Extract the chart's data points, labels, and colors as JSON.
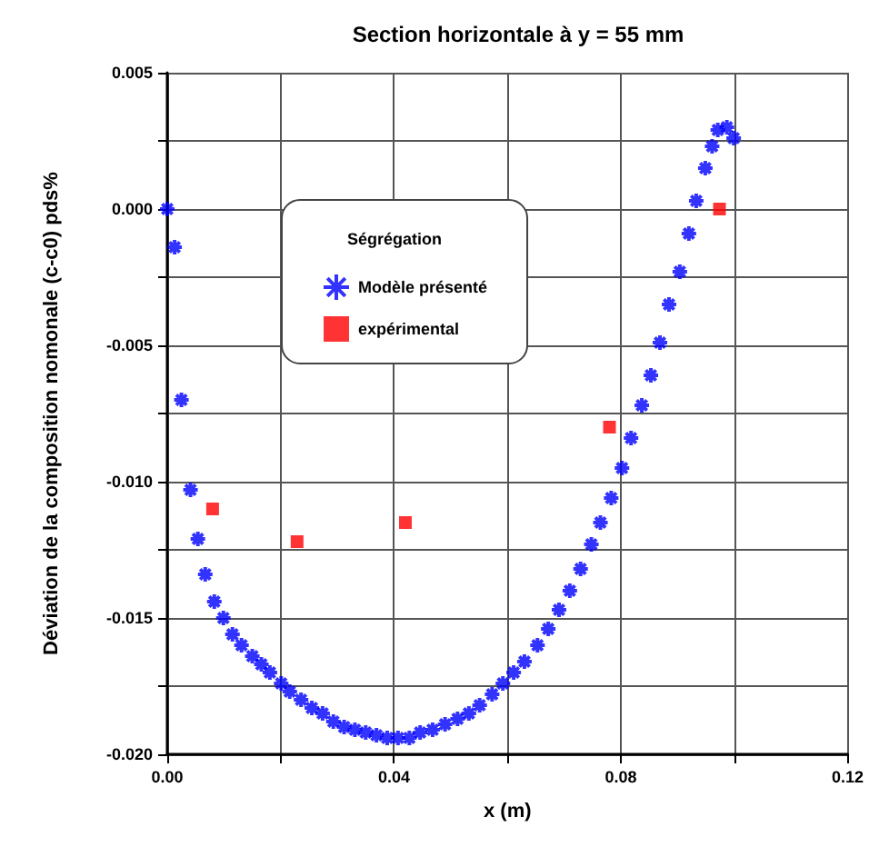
{
  "chart_data": {
    "type": "scatter",
    "title": "Section horizontale à y = 55 mm",
    "xlabel": "x (m)",
    "ylabel": "Déviation de la composition nomonale (c-c0) pds%",
    "legend_title": "Ségrégation",
    "legend": "top",
    "grid": true,
    "xlim": [
      0,
      0.12
    ],
    "xticks": [
      {
        "value": 0,
        "label": "0.00"
      },
      {
        "value": 0.02,
        "label": null
      },
      {
        "value": 0.04,
        "label": "0.04"
      },
      {
        "value": 0.06,
        "label": null
      },
      {
        "value": 0.08,
        "label": "0.08"
      },
      {
        "value": 0.1,
        "label": null
      },
      {
        "value": 0.12,
        "label": "0.12"
      }
    ],
    "ylim": [
      -0.02,
      0.005
    ],
    "yticks": [
      {
        "value": -0.02,
        "label": "-0.020"
      },
      {
        "value": -0.0175,
        "label": null
      },
      {
        "value": -0.015,
        "label": "-0.015"
      },
      {
        "value": -0.0125,
        "label": null
      },
      {
        "value": -0.01,
        "label": "-0.010"
      },
      {
        "value": -0.0075,
        "label": null
      },
      {
        "value": -0.005,
        "label": "-0.005"
      },
      {
        "value": -0.0025,
        "label": null
      },
      {
        "value": 0,
        "label": "0.000"
      },
      {
        "value": 0.0025,
        "label": null
      },
      {
        "value": 0.005,
        "label": "0.005"
      }
    ],
    "series": [
      {
        "name": "Modèle présenté",
        "color": "#0000ff",
        "marker": "cross",
        "x": [
          0,
          0.0013,
          0.0025,
          0.0041,
          0.0054,
          0.0067,
          0.0083,
          0.0099,
          0.0115,
          0.0131,
          0.015,
          0.0166,
          0.0181,
          0.0201,
          0.0216,
          0.0236,
          0.0255,
          0.0274,
          0.0293,
          0.0312,
          0.0331,
          0.035,
          0.0369,
          0.0388,
          0.0407,
          0.0427,
          0.0446,
          0.0468,
          0.049,
          0.0512,
          0.0532,
          0.0551,
          0.0573,
          0.0592,
          0.0611,
          0.063,
          0.0653,
          0.0672,
          0.0691,
          0.071,
          0.0729,
          0.0748,
          0.0764,
          0.0783,
          0.0802,
          0.0818,
          0.0837,
          0.0853,
          0.0869,
          0.0885,
          0.0904,
          0.092,
          0.0933,
          0.0949,
          0.0961,
          0.0971,
          0.0987,
          0.0999
        ],
        "values": [
          0,
          -0.0014,
          -0.007,
          -0.0103,
          -0.0121,
          -0.0134,
          -0.0144,
          -0.015,
          -0.0156,
          -0.016,
          -0.0164,
          -0.0167,
          -0.017,
          -0.0174,
          -0.0177,
          -0.018,
          -0.0183,
          -0.0185,
          -0.0188,
          -0.019,
          -0.0191,
          -0.0192,
          -0.0193,
          -0.0194,
          -0.0194,
          -0.0194,
          -0.0192,
          -0.0191,
          -0.0189,
          -0.0187,
          -0.0185,
          -0.0182,
          -0.0178,
          -0.0174,
          -0.017,
          -0.0166,
          -0.016,
          -0.0154,
          -0.0147,
          -0.014,
          -0.0132,
          -0.0123,
          -0.0115,
          -0.0106,
          -0.0095,
          -0.0084,
          -0.0072,
          -0.0061,
          -0.0049,
          -0.0035,
          -0.0023,
          -0.0009,
          0.0003,
          0.0015,
          0.0023,
          0.0029,
          0.003,
          0.0026
        ]
      },
      {
        "name": "expérimental",
        "color": "#ff0000",
        "marker": "square",
        "x": [
          0.008,
          0.0229,
          0.042,
          0.078,
          0.0974
        ],
        "values": [
          -0.011,
          -0.0122,
          -0.0115,
          -0.008,
          0
        ]
      }
    ]
  }
}
